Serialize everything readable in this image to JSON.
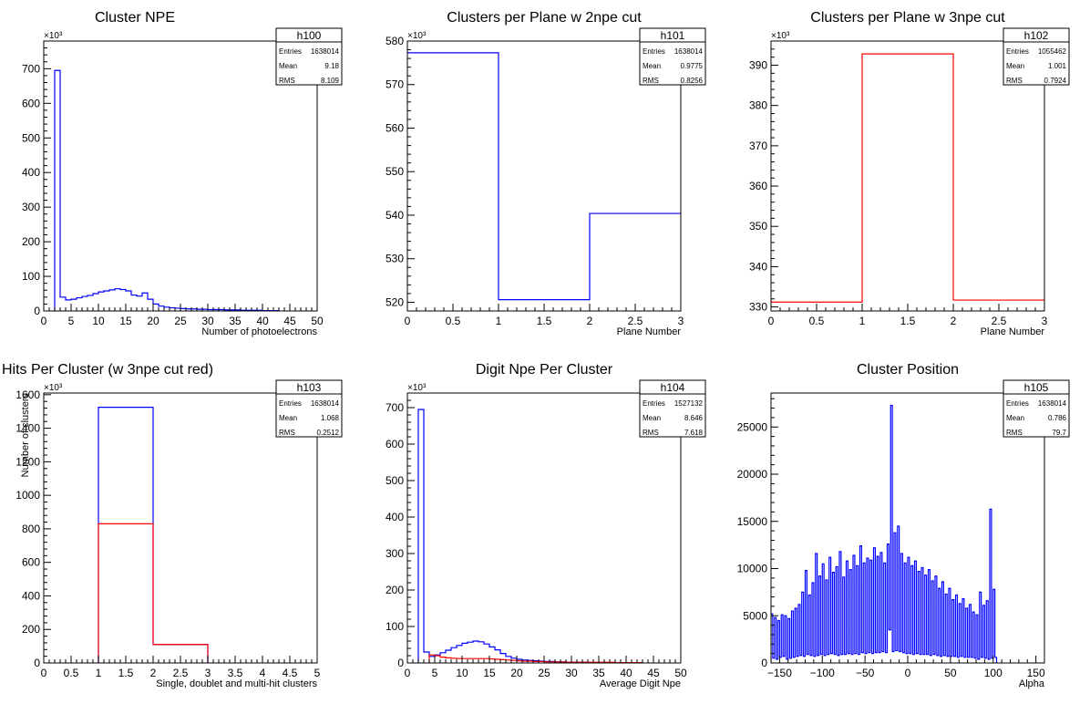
{
  "colors": {
    "blue": "#0000ff",
    "red": "#ff0000",
    "axis": "#000000",
    "background": "#ffffff"
  },
  "chart_data": [
    {
      "type": "histogram",
      "title": "Cluster NPE",
      "xlabel": "Number of photoelectrons",
      "ylabel": "",
      "exponent": "×10³",
      "xlim": [
        0,
        50
      ],
      "ylim": [
        0,
        780
      ],
      "xticks": [
        0,
        5,
        10,
        15,
        20,
        25,
        30,
        35,
        40,
        45,
        50
      ],
      "xtick_labels": [
        "0",
        "5",
        "10",
        "15",
        "20",
        "25",
        "30",
        "35",
        "40",
        "45",
        "50"
      ],
      "yticks": [
        0,
        100,
        200,
        300,
        400,
        500,
        600,
        700
      ],
      "ytick_labels": [
        "0",
        "100",
        "200",
        "300",
        "400",
        "500",
        "600",
        "700"
      ],
      "stats": {
        "name": "h100",
        "rows": [
          [
            "Entries",
            "1638014"
          ],
          [
            "Mean",
            "9.18"
          ],
          [
            "RMS",
            "8.109"
          ]
        ]
      },
      "series": [
        {
          "color": "blue",
          "bins": {
            "start": 2,
            "width": 1,
            "values": [
              695,
              40,
              32,
              34,
              38,
              42,
              45,
              50,
              55,
              58,
              61,
              64,
              62,
              58,
              46,
              43,
              52,
              34,
              20,
              14,
              11,
              9,
              8,
              7,
              6,
              6,
              5,
              5,
              4,
              4,
              4,
              3,
              3,
              3,
              2,
              2,
              2,
              2,
              1,
              1,
              1
            ]
          }
        }
      ]
    },
    {
      "type": "histogram",
      "title": "Clusters per Plane w 2npe cut",
      "xlabel": "Plane Number",
      "ylabel": "",
      "exponent": "×10³",
      "xlim": [
        0,
        3
      ],
      "ylim": [
        518,
        580
      ],
      "xticks": [
        0,
        0.5,
        1,
        1.5,
        2,
        2.5,
        3
      ],
      "xtick_labels": [
        "0",
        "0.5",
        "1",
        "1.5",
        "2",
        "2.5",
        "3"
      ],
      "yticks": [
        520,
        530,
        540,
        550,
        560,
        570,
        580
      ],
      "ytick_labels": [
        "520",
        "530",
        "540",
        "550",
        "560",
        "570",
        "580"
      ],
      "stats": {
        "name": "h101",
        "rows": [
          [
            "Entries",
            "1638014"
          ],
          [
            "Mean",
            "0.9775"
          ],
          [
            "RMS",
            "0.8256"
          ]
        ]
      },
      "series": [
        {
          "color": "blue",
          "bins": {
            "start": 0,
            "width": 1,
            "values": [
              577.3,
              520.6,
              540.4
            ]
          }
        }
      ]
    },
    {
      "type": "histogram",
      "title": "Clusters per Plane w 3npe cut",
      "xlabel": "Plane Number",
      "ylabel": "",
      "exponent": "×10³",
      "xlim": [
        0,
        3
      ],
      "ylim": [
        329,
        396
      ],
      "xticks": [
        0,
        0.5,
        1,
        1.5,
        2,
        2.5,
        3
      ],
      "xtick_labels": [
        "0",
        "0.5",
        "1",
        "1.5",
        "2",
        "2.5",
        "3"
      ],
      "yticks": [
        330,
        340,
        350,
        360,
        370,
        380,
        390
      ],
      "ytick_labels": [
        "330",
        "340",
        "350",
        "360",
        "370",
        "380",
        "390"
      ],
      "stats": {
        "name": "h102",
        "rows": [
          [
            "Entries",
            "1055462"
          ],
          [
            "Mean",
            "1.001"
          ],
          [
            "RMS",
            "0.7924"
          ]
        ]
      },
      "series": [
        {
          "color": "red",
          "bins": {
            "start": 0,
            "width": 1,
            "values": [
              331.2,
              392.8,
              331.7
            ]
          }
        }
      ]
    },
    {
      "type": "histogram",
      "title": "Hits Per Cluster (w 3npe cut red)",
      "xlabel": "Single, doublet and multi-hit clusters",
      "ylabel": "Number of clusters",
      "exponent": "×10³",
      "xlim": [
        0,
        5
      ],
      "ylim": [
        0,
        1610
      ],
      "xticks": [
        0,
        0.5,
        1,
        1.5,
        2,
        2.5,
        3,
        3.5,
        4,
        4.5,
        5
      ],
      "xtick_labels": [
        "0",
        "0.5",
        "1",
        "1.5",
        "2",
        "2.5",
        "3",
        "3.5",
        "4",
        "4.5",
        "5"
      ],
      "yticks": [
        0,
        200,
        400,
        600,
        800,
        1000,
        1200,
        1400,
        1600
      ],
      "ytick_labels": [
        "0",
        "200",
        "400",
        "600",
        "800",
        "1000",
        "1200",
        "1400",
        "1600"
      ],
      "stats": {
        "name": "h103",
        "rows": [
          [
            "Entries",
            "1638014"
          ],
          [
            "Mean",
            "1.068"
          ],
          [
            "RMS",
            "0.2512"
          ]
        ]
      },
      "series": [
        {
          "color": "blue",
          "bins": {
            "start": 1,
            "width": 1,
            "values": [
              1525,
              110
            ]
          }
        },
        {
          "color": "red",
          "bins": {
            "start": 1,
            "width": 1,
            "values": [
              830,
              110
            ]
          }
        }
      ]
    },
    {
      "type": "histogram",
      "title": "Digit Npe Per Cluster",
      "xlabel": "Average Digit Npe",
      "ylabel": "",
      "exponent": "×10³",
      "xlim": [
        0,
        50
      ],
      "ylim": [
        0,
        740
      ],
      "xticks": [
        0,
        5,
        10,
        15,
        20,
        25,
        30,
        35,
        40,
        45,
        50
      ],
      "xtick_labels": [
        "0",
        "5",
        "10",
        "15",
        "20",
        "25",
        "30",
        "35",
        "40",
        "45",
        "50"
      ],
      "yticks": [
        0,
        100,
        200,
        300,
        400,
        500,
        600,
        700
      ],
      "ytick_labels": [
        "0",
        "100",
        "200",
        "300",
        "400",
        "500",
        "600",
        "700"
      ],
      "stats": {
        "name": "h104",
        "rows": [
          [
            "Entries",
            "1527132"
          ],
          [
            "Mean",
            "8.646"
          ],
          [
            "RMS",
            "7.618"
          ]
        ]
      },
      "series": [
        {
          "color": "blue",
          "bins": {
            "start": 2,
            "width": 1,
            "values": [
              695,
              30,
              18,
              22,
              28,
              35,
              42,
              48,
              54,
              57,
              60,
              58,
              52,
              44,
              36,
              26,
              18,
              13,
              10,
              8,
              7,
              6,
              5,
              4,
              4,
              3,
              3,
              2,
              2,
              2,
              2,
              1,
              1,
              1,
              1,
              1,
              1,
              1,
              1,
              1,
              1
            ]
          }
        },
        {
          "color": "red",
          "bins": {
            "start": 4,
            "width": 1,
            "values": [
              22,
              20,
              16,
              14,
              13,
              12,
              12,
              12,
              12,
              12,
              12,
              11,
              10,
              9,
              8,
              7,
              6,
              5,
              5,
              4,
              4,
              3,
              3,
              3,
              3,
              2,
              2,
              2,
              2,
              2,
              2,
              2,
              2,
              2,
              1,
              1,
              1,
              1,
              1
            ]
          }
        }
      ]
    },
    {
      "type": "histogram",
      "title": "Cluster Position",
      "xlabel": "Alpha",
      "ylabel": "",
      "exponent": "",
      "xlim": [
        -160,
        160
      ],
      "ylim": [
        0,
        28600
      ],
      "xticks": [
        -150,
        -100,
        -50,
        0,
        50,
        100,
        150
      ],
      "xtick_labels": [
        "−150",
        "−100",
        "−50",
        "0",
        "50",
        "100",
        "150"
      ],
      "yticks": [
        0,
        5000,
        10000,
        15000,
        20000,
        25000
      ],
      "ytick_labels": [
        "0",
        "5000",
        "10000",
        "15000",
        "20000",
        "25000"
      ],
      "stats": {
        "name": "h105",
        "rows": [
          [
            "Entries",
            "1638014"
          ],
          [
            "Mean",
            "0.786"
          ],
          [
            "RMS",
            "79.7"
          ]
        ]
      },
      "series": [
        {
          "color": "blue",
          "bins": {
            "start": -160,
            "width": 2,
            "values": [
              5200,
              500,
              4800,
              400,
              4500,
              600,
              5100,
              700,
              5000,
              400,
              4700,
              500,
              5500,
              600,
              5800,
              700,
              6200,
              800,
              7500,
              700,
              9800,
              900,
              7200,
              800,
              8500,
              700,
              11600,
              800,
              9200,
              900,
              10500,
              800,
              8800,
              900,
              11200,
              1000,
              9600,
              900,
              10200,
              800,
              11800,
              900,
              9100,
              900,
              10800,
              1000,
              9900,
              900,
              11400,
              1000,
              10300,
              900,
              12400,
              1100,
              10600,
              1000,
              11100,
              1100,
              10900,
              1000,
              12200,
              1100,
              11300,
              1100,
              11700,
              1200,
              10600,
              1100,
              12600,
              3500,
              27300,
              1200,
              13800,
              1300,
              14500,
              1200,
              11600,
              1100,
              10600,
              1000,
              11200,
              1000,
              10300,
              900,
              10800,
              1000,
              9700,
              900,
              10100,
              900,
              9300,
              900,
              9900,
              800,
              8700,
              900,
              9200,
              800,
              7900,
              700,
              8600,
              800,
              7300,
              700,
              7900,
              700,
              6700,
              700,
              7200,
              600,
              6300,
              700,
              6800,
              600,
              5800,
              600,
              6200,
              600,
              5400,
              500,
              5100,
              400,
              7500,
              600,
              6100,
              500,
              6600,
              400,
              16300,
              500,
              7800,
              600
            ]
          }
        }
      ]
    }
  ]
}
